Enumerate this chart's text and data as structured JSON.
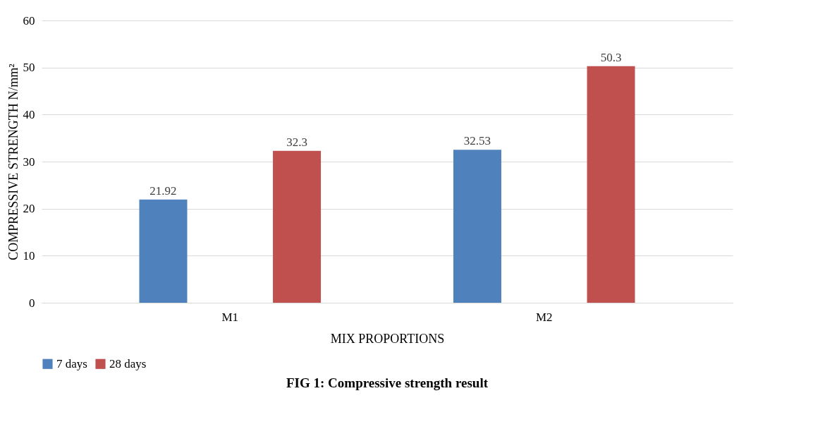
{
  "chart_data": {
    "type": "bar",
    "title": "FIG 1: Compressive strength result",
    "xlabel": "MIX PROPORTIONS",
    "ylabel": "COMPRESSIVE STRENGTH N/mm²",
    "categories": [
      "M1",
      "M2"
    ],
    "series": [
      {
        "name": "7 days",
        "color": "#4f81bd",
        "values": [
          21.92,
          32.53
        ]
      },
      {
        "name": "28 days",
        "color": "#c0504d",
        "values": [
          32.3,
          50.3
        ]
      }
    ],
    "ylim": [
      0,
      60
    ],
    "yticks": [
      0,
      10,
      20,
      30,
      40,
      50,
      60
    ],
    "grid": "y",
    "legend": "bottom",
    "data_labels": true
  }
}
